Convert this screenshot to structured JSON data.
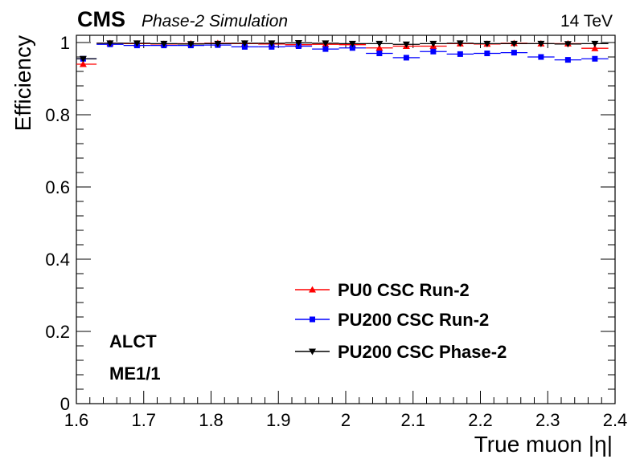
{
  "header": {
    "experiment": "CMS",
    "subtitle": "Phase-2 Simulation",
    "energy": "14 TeV"
  },
  "annotations": {
    "line1": "ALCT",
    "line2": "ME1/1"
  },
  "chart_data": {
    "type": "scatter",
    "xlabel": "True muon |η|",
    "ylabel": "Efficiency",
    "xlim": [
      1.6,
      2.4
    ],
    "ylim": [
      0,
      1.02
    ],
    "xticks": [
      1.6,
      1.7,
      1.8,
      1.9,
      2.0,
      2.1,
      2.2,
      2.3,
      2.4
    ],
    "xtick_labels": [
      "1.6",
      "1.7",
      "1.8",
      "1.9",
      "2",
      "2.1",
      "2.2",
      "2.3",
      "2.4"
    ],
    "yticks": [
      0,
      0.2,
      0.4,
      0.6,
      0.8,
      1.0
    ],
    "ytick_labels": [
      "0",
      "0.2",
      "0.4",
      "0.6",
      "0.8",
      "1"
    ],
    "legend_position": "bottom-center",
    "x": [
      1.61,
      1.63,
      1.65,
      1.67,
      1.69,
      1.71,
      1.73,
      1.75,
      1.77,
      1.79,
      1.81,
      1.83,
      1.85,
      1.87,
      1.89,
      1.91,
      1.93,
      1.95,
      1.97,
      1.99,
      2.01,
      2.03,
      2.05,
      2.07,
      2.09,
      2.11,
      2.13,
      2.15,
      2.17,
      2.19,
      2.21,
      2.23,
      2.25,
      2.27,
      2.29,
      2.31,
      2.33,
      2.35,
      2.37,
      2.39
    ],
    "bin_half_width": 0.02,
    "series": [
      {
        "name": "PU0 CSC Run-2",
        "color": "#ff0000",
        "marker": "triangle-up",
        "values": [
          0.94,
          null,
          0.998,
          null,
          0.997,
          null,
          0.996,
          null,
          0.997,
          null,
          0.998,
          null,
          0.997,
          null,
          0.996,
          null,
          0.994,
          null,
          0.995,
          null,
          0.994,
          null,
          0.985,
          null,
          0.99,
          null,
          0.99,
          null,
          0.997,
          null,
          0.996,
          null,
          0.998,
          null,
          0.997,
          null,
          0.997,
          null,
          0.984,
          null
        ]
      },
      {
        "name": "PU200 CSC Run-2",
        "color": "#0000ff",
        "marker": "square",
        "values": [
          0.955,
          null,
          0.995,
          null,
          0.992,
          null,
          0.992,
          null,
          0.992,
          null,
          0.993,
          null,
          0.988,
          null,
          0.988,
          null,
          0.99,
          null,
          0.982,
          null,
          0.985,
          null,
          0.97,
          null,
          0.958,
          null,
          0.975,
          null,
          0.968,
          null,
          0.97,
          null,
          0.972,
          null,
          0.96,
          null,
          0.952,
          null,
          0.955,
          null
        ]
      },
      {
        "name": "PU200 CSC Phase-2",
        "color": "#000000",
        "marker": "triangle-down",
        "values": [
          0.955,
          null,
          0.998,
          null,
          0.998,
          null,
          0.997,
          null,
          0.996,
          null,
          0.997,
          null,
          0.998,
          null,
          0.998,
          null,
          0.999,
          null,
          0.998,
          null,
          0.997,
          null,
          0.997,
          null,
          0.995,
          null,
          0.997,
          null,
          0.998,
          null,
          0.997,
          null,
          0.997,
          null,
          0.997,
          null,
          0.996,
          null,
          0.997,
          null
        ]
      }
    ]
  }
}
